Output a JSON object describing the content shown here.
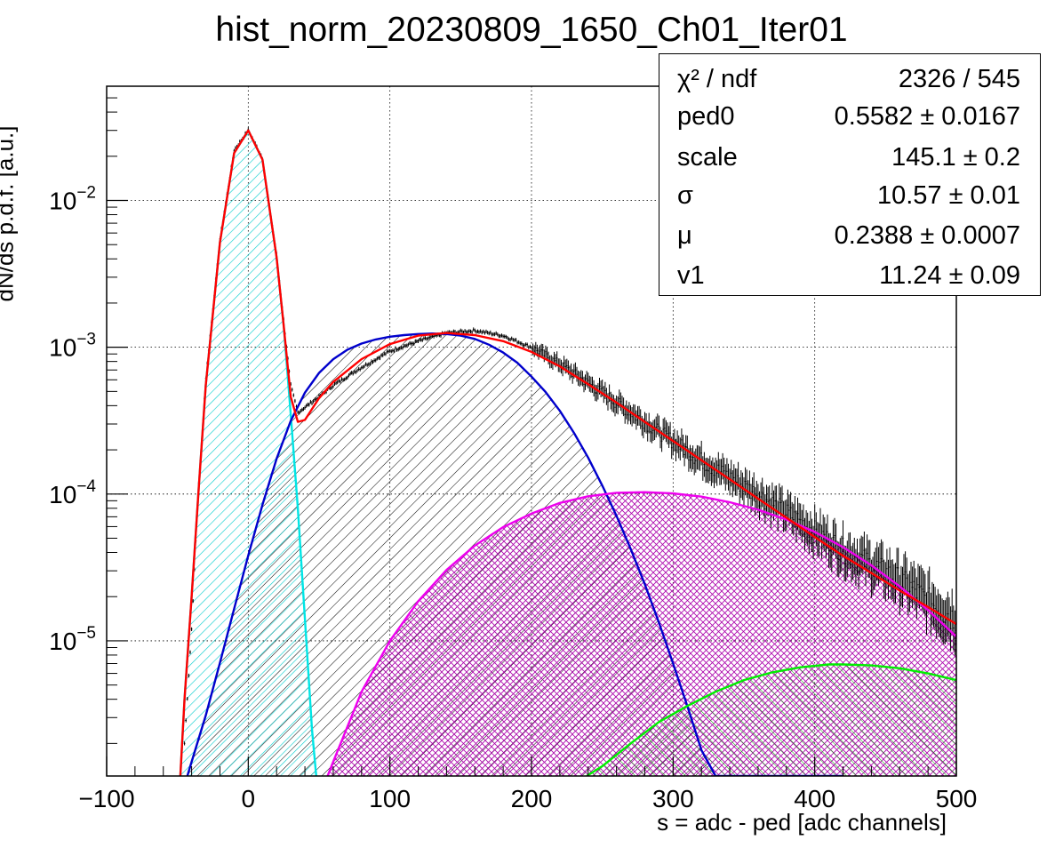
{
  "chart_data": {
    "type": "line",
    "title": "hist_norm_20230809_1650_Ch01_Iter01",
    "xlabel": "s = adc - ped [adc channels]",
    "ylabel": "dN/ds p.d.f. [a.u.]",
    "xlim": [
      -100,
      500
    ],
    "ylim": [
      1.2e-06,
      0.06
    ],
    "yscale": "log",
    "grid": true,
    "x_ticks": [
      "−100",
      "0",
      "100",
      "200",
      "300",
      "400",
      "500"
    ],
    "y_ticks": [
      {
        "base": "10",
        "exp": "−5"
      },
      {
        "base": "10",
        "exp": "−4"
      },
      {
        "base": "10",
        "exp": "−3"
      },
      {
        "base": "10",
        "exp": "−2"
      }
    ],
    "stats_box": {
      "placement": "top-right",
      "rows": [
        {
          "name": "χ² / ndf",
          "value": "2326 / 545"
        },
        {
          "name": "ped0",
          "value": "0.5582 ± 0.0167"
        },
        {
          "name": "scale",
          "value": "145.1 ± 0.2"
        },
        {
          "name": "σ",
          "value": "10.57 ± 0.01"
        },
        {
          "name": "μ",
          "value": "0.2388 ± 0.0007"
        },
        {
          "name": "v1",
          "value": "11.24 ± 0.09"
        }
      ]
    },
    "series": [
      {
        "role": "data histogram",
        "color": "#000000",
        "x": [
          -45,
          -40,
          -35,
          -30,
          -20,
          -10,
          0,
          10,
          20,
          30,
          35,
          40,
          50,
          60,
          80,
          100,
          120,
          140,
          160,
          180,
          200,
          220,
          240,
          260,
          280,
          300,
          320,
          340,
          360,
          380,
          400,
          420,
          440,
          460,
          480,
          500
        ],
        "y": [
          2e-06,
          1.2e-05,
          0.00012,
          0.00062,
          0.0055,
          0.022,
          0.03,
          0.0195,
          0.0043,
          0.00055,
          0.00036,
          0.00039,
          0.00046,
          0.00055,
          0.00073,
          0.00094,
          0.0011,
          0.00125,
          0.0013,
          0.0012,
          0.001,
          0.00077,
          0.00057,
          0.00042,
          0.00031,
          0.00023,
          0.00017,
          0.00013,
          0.0001,
          7.5e-05,
          5.6e-05,
          4.2e-05,
          3.3e-05,
          2.6e-05,
          1.9e-05,
          1.4e-05
        ]
      },
      {
        "role": "total fit",
        "color": "#ff0000",
        "x": [
          -48,
          -45,
          -40,
          -35,
          -30,
          -20,
          -10,
          0,
          10,
          20,
          25,
          30,
          35,
          40,
          50,
          60,
          80,
          100,
          120,
          140,
          160,
          180,
          200,
          220,
          240,
          260,
          280,
          300,
          320,
          340,
          360,
          380,
          400,
          420,
          440,
          460,
          480,
          500
        ],
        "y": [
          1.2e-06,
          4e-06,
          2e-05,
          0.00011,
          0.00055,
          0.0052,
          0.021,
          0.03,
          0.019,
          0.0041,
          0.0014,
          0.00046,
          0.00031,
          0.00032,
          0.00045,
          0.00058,
          0.00083,
          0.00105,
          0.0012,
          0.00125,
          0.00121,
          0.0011,
          0.00093,
          0.00074,
          0.00056,
          0.00042,
          0.00031,
          0.00023,
          0.00017,
          0.000126,
          9.3e-05,
          6.9e-05,
          5.1e-05,
          3.8e-05,
          2.9e-05,
          2.2e-05,
          1.7e-05,
          1.3e-05
        ]
      },
      {
        "role": "pedestal component",
        "color": "#00e5e5",
        "fill": "#00cccc",
        "x": [
          -48,
          -45,
          -40,
          -35,
          -30,
          -20,
          -10,
          0,
          10,
          20,
          25,
          30,
          35,
          40,
          45,
          48
        ],
        "y": [
          1.2e-06,
          4e-06,
          2e-05,
          0.00011,
          0.00055,
          0.0052,
          0.021,
          0.03,
          0.019,
          0.0041,
          0.0014,
          0.00035,
          8e-05,
          1.4e-05,
          2.5e-06,
          1.2e-06
        ]
      },
      {
        "role": "1 p.e. component",
        "color": "#0000cc",
        "fill": "#000000",
        "x": [
          -43,
          -40,
          -30,
          -20,
          -10,
          0,
          10,
          20,
          30,
          40,
          50,
          60,
          70,
          80,
          90,
          100,
          110,
          120,
          130,
          140,
          150,
          160,
          170,
          180,
          190,
          200,
          210,
          220,
          230,
          240,
          250,
          260,
          270,
          280,
          290,
          300,
          310,
          320,
          330,
          340,
          350,
          360,
          370,
          380,
          390,
          400,
          410,
          420
        ],
        "y": [
          1.2e-06,
          1.5e-06,
          3.1e-06,
          7.1e-06,
          1.65e-05,
          3.81e-05,
          8.45e-05,
          0.000174,
          0.000315,
          0.000491,
          0.000669,
          0.000829,
          0.000962,
          0.00106,
          0.00113,
          0.00118,
          0.00121,
          0.00123,
          0.00124,
          0.00123,
          0.0012,
          0.00114,
          0.00104,
          0.00092,
          0.000784,
          0.000631,
          0.000495,
          0.000369,
          0.000261,
          0.000177,
          0.000114,
          7.11e-05,
          4.24e-05,
          2.43e-05,
          1.33e-05,
          7e-06,
          3.6e-06,
          1.8e-06,
          1.2e-06,
          1.2e-06,
          1.2e-06,
          1.2e-06,
          1.2e-06,
          1.2e-06,
          1.2e-06,
          1.2e-06,
          1.2e-06,
          1.2e-06
        ]
      },
      {
        "role": "2 p.e. component",
        "color": "#ee00ee",
        "fill": "#990099",
        "x": [
          56,
          60,
          80,
          100,
          120,
          140,
          160,
          180,
          200,
          220,
          240,
          260,
          280,
          300,
          320,
          340,
          360,
          380,
          400,
          420,
          440,
          460,
          480,
          500
        ],
        "y": [
          1.2e-06,
          1.5e-06,
          4.5e-06,
          1e-05,
          1.86e-05,
          3.04e-05,
          4.46e-05,
          5.95e-05,
          7.36e-05,
          8.7e-05,
          9.65e-05,
          0.000102,
          0.000103,
          0.000101,
          9.6e-05,
          8.8e-05,
          7.82e-05,
          6.7e-05,
          5.52e-05,
          4.35e-05,
          3.27e-05,
          2.35e-05,
          1.62e-05,
          1.07e-05
        ]
      },
      {
        "role": "3 p.e. component",
        "color": "#00ee00",
        "fill": "#00aa00",
        "x": [
          239,
          250,
          270,
          290,
          310,
          330,
          350,
          370,
          390,
          410,
          420,
          440,
          460,
          480,
          500
        ],
        "y": [
          1.2e-06,
          1.4e-06,
          2e-06,
          2.8e-06,
          3.6e-06,
          4.5e-06,
          5.4e-06,
          6.1e-06,
          6.6e-06,
          6.9e-06,
          6.9e-06,
          6.8e-06,
          6.5e-06,
          6e-06,
          5.4e-06
        ]
      }
    ]
  }
}
